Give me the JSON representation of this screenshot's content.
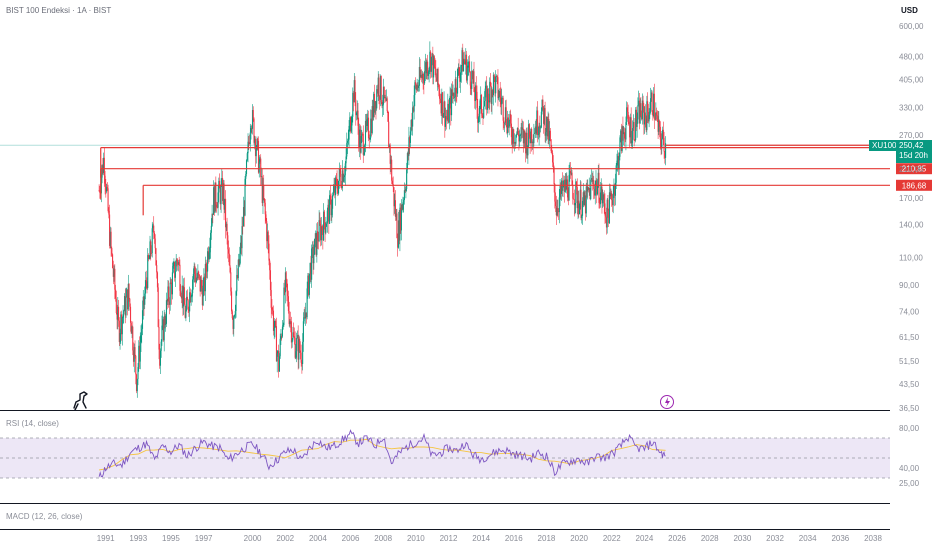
{
  "header": {
    "title": "BIST 100 Endeksi · 1A · BIST",
    "currency": "USD"
  },
  "colors": {
    "up": "#089981",
    "down": "#f23645",
    "level_line": "#e53935",
    "rsi_line": "#7e57c2",
    "rsi_ma": "#f5c542",
    "rsi_band": "#ede7f6",
    "grid": "#eceef2",
    "axis_text": "#8a8d97",
    "current_guide": "#b2dfdb"
  },
  "chart_data": [
    {
      "type": "candlestick",
      "pane": "price",
      "scale": "log",
      "y_ticks": [
        "36,50",
        "43,50",
        "51,50",
        "61,50",
        "74,00",
        "90,00",
        "110,00",
        "140,00",
        "170,00",
        "210,00",
        "270,00",
        "330,00",
        "405,00",
        "480,00",
        "600,00"
      ],
      "y_tick_values": [
        36.5,
        43.5,
        51.5,
        61.5,
        74,
        90,
        110,
        140,
        170,
        210,
        270,
        330,
        405,
        480,
        600
      ],
      "ylim": [
        36.5,
        600
      ],
      "x_ticks": [
        "1991",
        "1993",
        "1995",
        "1997",
        "2000",
        "2002",
        "2004",
        "2006",
        "2008",
        "2010",
        "2012",
        "2014",
        "2016",
        "2018",
        "2020",
        "2022",
        "2024",
        "2026",
        "2028",
        "2030",
        "2032",
        "2034",
        "2036",
        "2038"
      ],
      "xlim": [
        1989.7,
        2039.5
      ],
      "series": [
        {
          "name": "XU100",
          "points": [
            [
              1990.6,
              180
            ],
            [
              1990.9,
              230
            ],
            [
              1991.3,
              120
            ],
            [
              1991.8,
              65
            ],
            [
              1992.4,
              85
            ],
            [
              1992.9,
              45
            ],
            [
              1993.5,
              95
            ],
            [
              1994.0,
              140
            ],
            [
              1994.3,
              55
            ],
            [
              1994.8,
              80
            ],
            [
              1995.4,
              110
            ],
            [
              1995.9,
              72
            ],
            [
              1996.4,
              100
            ],
            [
              1997.0,
              85
            ],
            [
              1997.6,
              170
            ],
            [
              1998.2,
              180
            ],
            [
              1998.8,
              70
            ],
            [
              1999.3,
              120
            ],
            [
              1999.9,
              320
            ],
            [
              2000.4,
              220
            ],
            [
              2000.9,
              130
            ],
            [
              2001.2,
              75
            ],
            [
              2001.6,
              50
            ],
            [
              2002.0,
              90
            ],
            [
              2002.5,
              60
            ],
            [
              2003.0,
              55
            ],
            [
              2003.5,
              100
            ],
            [
              2004.0,
              130
            ],
            [
              2004.6,
              150
            ],
            [
              2005.2,
              190
            ],
            [
              2005.7,
              220
            ],
            [
              2006.2,
              380
            ],
            [
              2006.6,
              250
            ],
            [
              2007.2,
              290
            ],
            [
              2007.7,
              400
            ],
            [
              2008.2,
              320
            ],
            [
              2008.6,
              180
            ],
            [
              2008.9,
              130
            ],
            [
              2009.4,
              200
            ],
            [
              2009.9,
              370
            ],
            [
              2010.4,
              420
            ],
            [
              2010.9,
              480
            ],
            [
              2011.4,
              380
            ],
            [
              2011.9,
              300
            ],
            [
              2012.4,
              390
            ],
            [
              2012.9,
              470
            ],
            [
              2013.4,
              420
            ],
            [
              2013.8,
              320
            ],
            [
              2014.3,
              350
            ],
            [
              2014.8,
              400
            ],
            [
              2015.3,
              340
            ],
            [
              2015.8,
              280
            ],
            [
              2016.3,
              270
            ],
            [
              2016.8,
              260
            ],
            [
              2017.3,
              290
            ],
            [
              2017.8,
              320
            ],
            [
              2018.2,
              260
            ],
            [
              2018.6,
              160
            ],
            [
              2019.0,
              180
            ],
            [
              2019.5,
              190
            ],
            [
              2019.9,
              170
            ],
            [
              2020.3,
              160
            ],
            [
              2020.8,
              190
            ],
            [
              2021.2,
              185
            ],
            [
              2021.7,
              150
            ],
            [
              2022.1,
              180
            ],
            [
              2022.5,
              250
            ],
            [
              2022.9,
              300
            ],
            [
              2023.3,
              280
            ],
            [
              2023.7,
              320
            ],
            [
              2024.1,
              310
            ],
            [
              2024.5,
              350
            ],
            [
              2024.9,
              270
            ],
            [
              2025.3,
              250.42
            ]
          ]
        }
      ],
      "horizontal_levels": [
        {
          "value": 246.03,
          "label": "246,03",
          "start_x": 1990.7
        },
        {
          "value": 210.85,
          "label": "210,85",
          "start_x": 1990.7
        },
        {
          "value": 186.68,
          "label": "186,68",
          "start_x": 1993.3
        }
      ],
      "current_price": {
        "value": 250.42,
        "label": "250,42",
        "symbol": "XU100",
        "countdown": "15d 20h"
      }
    },
    {
      "type": "line",
      "pane": "rsi",
      "title": "RSI (14, close)",
      "ylim": [
        22,
        84
      ],
      "y_ticks": [
        "25,00",
        "40,00",
        "80,00"
      ],
      "y_tick_values": [
        25,
        40,
        80
      ],
      "bands": {
        "upper": 70,
        "lower": 30,
        "middle": 50
      },
      "series": [
        {
          "values_x": [
            1990.6,
            1991.0,
            1991.5,
            1992.0,
            1992.5,
            1993.0,
            1993.5,
            1994.0,
            1994.5,
            1995.0,
            1995.5,
            1996.0,
            1996.5,
            1997.0,
            1997.5,
            1998.0,
            1998.5,
            1999.0,
            1999.5,
            2000.0,
            2000.5,
            2001.0,
            2001.5,
            2002.0,
            2002.5,
            2003.0,
            2003.5,
            2004.0,
            2004.5,
            2005.0,
            2005.5,
            2006.0,
            2006.5,
            2007.0,
            2007.5,
            2008.0,
            2008.5,
            2009.0,
            2009.5,
            2010.0,
            2010.5,
            2011.0,
            2011.5,
            2012.0,
            2012.5,
            2013.0,
            2013.5,
            2014.0,
            2014.5,
            2015.0,
            2015.5,
            2016.0,
            2016.5,
            2017.0,
            2017.5,
            2018.0,
            2018.5,
            2019.0,
            2019.5,
            2020.0,
            2020.5,
            2021.0,
            2021.5,
            2022.0,
            2022.5,
            2023.0,
            2023.5,
            2024.0,
            2024.5,
            2025.0,
            2025.3
          ],
          "values": [
            30,
            40,
            44,
            43,
            55,
            60,
            64,
            48,
            62,
            56,
            63,
            52,
            60,
            66,
            62,
            60,
            48,
            54,
            60,
            64,
            55,
            42,
            48,
            56,
            58,
            47,
            60,
            68,
            60,
            62,
            68,
            74,
            65,
            70,
            62,
            72,
            45,
            55,
            62,
            66,
            70,
            52,
            55,
            60,
            57,
            65,
            53,
            49,
            53,
            57,
            58,
            54,
            52,
            49,
            55,
            52,
            36,
            44,
            47,
            49,
            44,
            52,
            50,
            54,
            61,
            71,
            60,
            59,
            66,
            55,
            52
          ]
        }
      ]
    },
    {
      "type": "line",
      "pane": "macd",
      "title": "MACD (12, 26, close)",
      "series": []
    }
  ]
}
